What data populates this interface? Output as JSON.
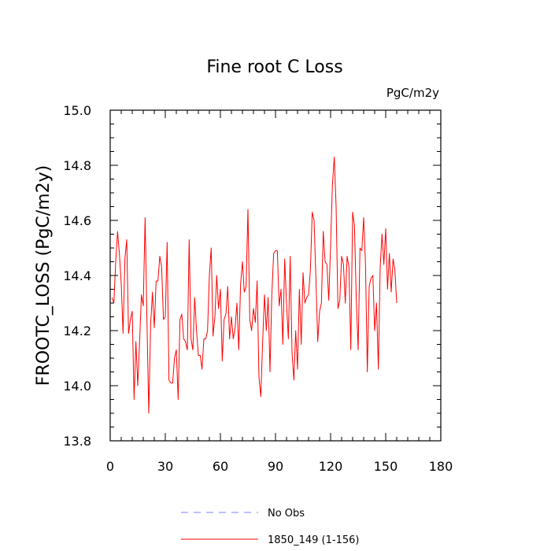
{
  "chart_data": {
    "type": "line",
    "title": "Fine root C Loss",
    "units_label": "PgC/m2y",
    "ylabel": "FROOTC_LOSS  (PgC/m2y)",
    "xlabel": "",
    "xlim": [
      0,
      180
    ],
    "ylim": [
      13.8,
      15.0
    ],
    "x_ticks": [
      0,
      30,
      60,
      90,
      120,
      150,
      180
    ],
    "y_ticks": [
      13.8,
      14.0,
      14.2,
      14.4,
      14.6,
      14.8,
      15.0
    ],
    "x_tick_labels": [
      "0",
      "30",
      "60",
      "90",
      "120",
      "150",
      "180"
    ],
    "y_tick_labels": [
      "13.8",
      "14.0",
      "14.2",
      "14.4",
      "14.6",
      "14.8",
      "15.0"
    ],
    "grid": false,
    "legend_position": "bottom",
    "series": [
      {
        "name": "No Obs",
        "color": "#8080ff",
        "dash": "dashed",
        "values": []
      },
      {
        "name": "1850_149 (1-156)",
        "color": "#ff0000",
        "dash": "solid",
        "x_start": 1,
        "values": [
          14.32,
          14.3,
          14.45,
          14.56,
          14.48,
          14.37,
          14.19,
          14.46,
          14.53,
          14.19,
          14.24,
          14.27,
          13.95,
          14.16,
          14.0,
          14.16,
          14.33,
          14.29,
          14.61,
          14.24,
          13.9,
          14.22,
          14.34,
          14.21,
          14.38,
          14.38,
          14.47,
          14.43,
          14.24,
          14.25,
          14.52,
          14.02,
          14.01,
          14.01,
          14.1,
          14.13,
          13.95,
          14.24,
          14.26,
          14.17,
          14.16,
          14.13,
          14.53,
          14.17,
          14.13,
          14.32,
          14.2,
          14.11,
          14.11,
          14.06,
          14.17,
          14.17,
          14.2,
          14.4,
          14.5,
          14.18,
          14.25,
          14.4,
          14.28,
          14.35,
          14.09,
          14.24,
          14.26,
          14.36,
          14.17,
          14.25,
          14.17,
          14.21,
          14.3,
          14.13,
          14.37,
          14.45,
          14.34,
          14.36,
          14.64,
          14.24,
          14.2,
          14.28,
          14.23,
          14.38,
          14.03,
          13.96,
          14.16,
          14.33,
          14.2,
          14.32,
          14.05,
          14.33,
          14.48,
          14.49,
          14.49,
          14.29,
          14.35,
          14.15,
          14.46,
          14.3,
          14.17,
          14.47,
          14.12,
          14.02,
          14.2,
          14.06,
          14.35,
          14.15,
          14.41,
          14.3,
          14.32,
          14.33,
          14.42,
          14.63,
          14.6,
          14.39,
          14.16,
          14.27,
          14.3,
          14.56,
          14.45,
          14.44,
          14.31,
          14.51,
          14.73,
          14.83,
          14.65,
          14.28,
          14.31,
          14.47,
          14.44,
          14.3,
          14.47,
          14.43,
          14.13,
          14.63,
          14.58,
          14.31,
          14.13,
          14.5,
          14.49,
          14.61,
          14.44,
          14.05,
          14.36,
          14.39,
          14.4,
          14.2,
          14.3,
          14.06,
          14.43,
          14.55,
          14.44,
          14.57,
          14.35,
          14.48,
          14.34,
          14.46,
          14.42,
          14.3
        ]
      }
    ]
  }
}
